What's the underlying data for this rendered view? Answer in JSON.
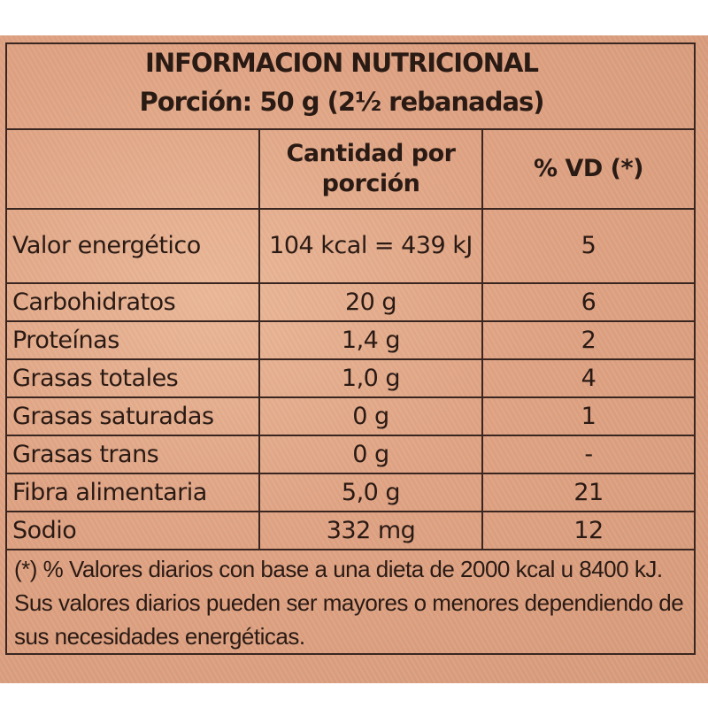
{
  "title": "INFORMACION NUTRICIONAL",
  "serving": "Porción: 50 g (2½ rebanadas)",
  "columns": [
    "",
    "Cantidad por porción",
    "% VD (*)"
  ],
  "rows": [
    {
      "name": "Valor energético",
      "amount": "104 kcal = 439 kJ",
      "dv": "5"
    },
    {
      "name": "Carbohidratos",
      "amount": "20 g",
      "dv": "6"
    },
    {
      "name": "Proteínas",
      "amount": "1,4 g",
      "dv": "2"
    },
    {
      "name": "Grasas totales",
      "amount": "1,0 g",
      "dv": "4"
    },
    {
      "name": "Grasas saturadas",
      "amount": "0 g",
      "dv": "1"
    },
    {
      "name": "Grasas trans",
      "amount": "0 g",
      "dv": "-"
    },
    {
      "name": "Fibra alimentaria",
      "amount": "5,0 g",
      "dv": "21"
    },
    {
      "name": "Sodio",
      "amount": "332 mg",
      "dv": "12"
    }
  ],
  "footnote": "(*) % Valores diarios con base a una dieta de 2000 kcal u 8400 kJ. Sus valores diarios pueden ser mayores o menores dependiendo de sus necesidades energéticas."
}
